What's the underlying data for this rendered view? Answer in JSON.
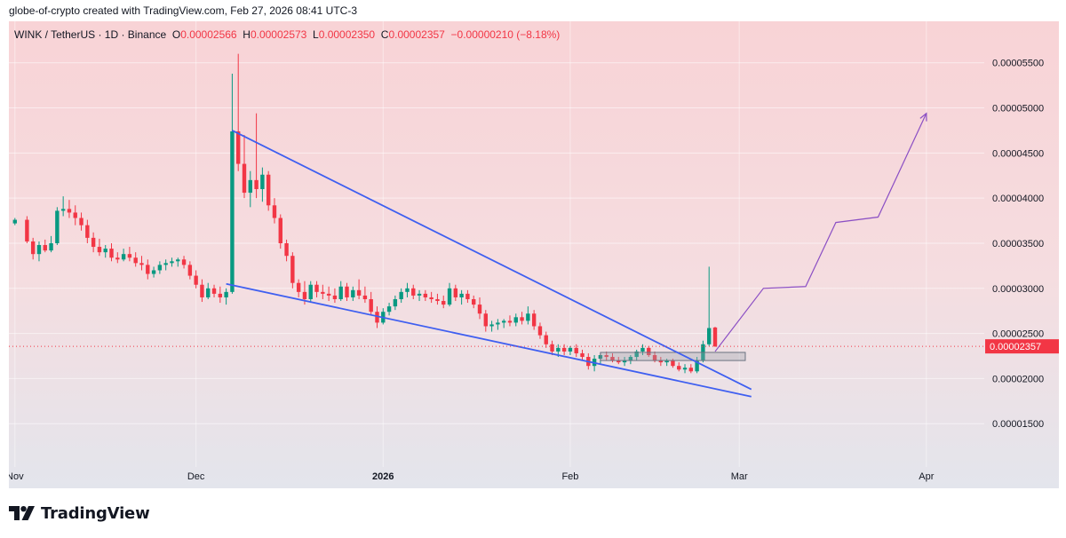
{
  "header": {
    "credit": "globe-of-crypto created with TradingView.com, Feb 27, 2026 08:41 UTC-3"
  },
  "legend": {
    "symbol": "WINK / TetherUS · 1D · Binance",
    "o_label": "O",
    "o_value": "0.00002566",
    "h_label": "H",
    "h_value": "0.00002573",
    "l_label": "L",
    "l_value": "0.00002350",
    "c_label": "C",
    "c_value": "0.00002357",
    "change": "−0.00000210 (−8.18%)"
  },
  "branding": {
    "name": "TradingView"
  },
  "colors": {
    "bull": "#089981",
    "bear": "#f23645",
    "trendline": "#3f5ff0",
    "projection": "#8b4fc4",
    "last_price_bg": "#f23645"
  },
  "chart_data": {
    "type": "candlestick",
    "x_ticks": [
      "Nov",
      "Dec",
      "2026",
      "Feb",
      "Mar",
      "Apr"
    ],
    "y_ticks": [
      "0.00001500",
      "0.00002000",
      "0.00002500",
      "0.00003000",
      "0.00003500",
      "0.00004000",
      "0.00004500",
      "0.00005000",
      "0.00005500"
    ],
    "ylim": [
      1.02e-05,
      5.96e-05
    ],
    "last_price": "0.00002357",
    "candles": [
      {
        "d": "2025-11-01",
        "o": 3.72,
        "h": 3.78,
        "l": 3.7,
        "c": 3.76
      },
      {
        "d": "2025-11-03",
        "o": 3.76,
        "h": 3.8,
        "l": 3.5,
        "c": 3.52
      },
      {
        "d": "2025-11-04",
        "o": 3.52,
        "h": 3.56,
        "l": 3.32,
        "c": 3.38
      },
      {
        "d": "2025-11-05",
        "o": 3.38,
        "h": 3.52,
        "l": 3.3,
        "c": 3.48
      },
      {
        "d": "2025-11-06",
        "o": 3.48,
        "h": 3.54,
        "l": 3.4,
        "c": 3.42
      },
      {
        "d": "2025-11-07",
        "o": 3.42,
        "h": 3.58,
        "l": 3.4,
        "c": 3.5
      },
      {
        "d": "2025-11-08",
        "o": 3.5,
        "h": 3.9,
        "l": 3.48,
        "c": 3.86
      },
      {
        "d": "2025-11-09",
        "o": 3.86,
        "h": 4.02,
        "l": 3.8,
        "c": 3.88
      },
      {
        "d": "2025-11-10",
        "o": 3.88,
        "h": 3.98,
        "l": 3.78,
        "c": 3.84
      },
      {
        "d": "2025-11-11",
        "o": 3.84,
        "h": 3.92,
        "l": 3.7,
        "c": 3.78
      },
      {
        "d": "2025-11-12",
        "o": 3.78,
        "h": 3.84,
        "l": 3.64,
        "c": 3.7
      },
      {
        "d": "2025-11-13",
        "o": 3.7,
        "h": 3.76,
        "l": 3.5,
        "c": 3.56
      },
      {
        "d": "2025-11-14",
        "o": 3.56,
        "h": 3.62,
        "l": 3.4,
        "c": 3.46
      },
      {
        "d": "2025-11-15",
        "o": 3.46,
        "h": 3.55,
        "l": 3.36,
        "c": 3.4
      },
      {
        "d": "2025-11-16",
        "o": 3.4,
        "h": 3.48,
        "l": 3.34,
        "c": 3.44
      },
      {
        "d": "2025-11-17",
        "o": 3.44,
        "h": 3.5,
        "l": 3.3,
        "c": 3.34
      },
      {
        "d": "2025-11-18",
        "o": 3.34,
        "h": 3.4,
        "l": 3.28,
        "c": 3.32
      },
      {
        "d": "2025-11-19",
        "o": 3.32,
        "h": 3.44,
        "l": 3.3,
        "c": 3.38
      },
      {
        "d": "2025-11-20",
        "o": 3.38,
        "h": 3.46,
        "l": 3.3,
        "c": 3.34
      },
      {
        "d": "2025-11-21",
        "o": 3.34,
        "h": 3.4,
        "l": 3.24,
        "c": 3.28
      },
      {
        "d": "2025-11-22",
        "o": 3.28,
        "h": 3.36,
        "l": 3.2,
        "c": 3.26
      },
      {
        "d": "2025-11-23",
        "o": 3.26,
        "h": 3.32,
        "l": 3.1,
        "c": 3.16
      },
      {
        "d": "2025-11-24",
        "o": 3.16,
        "h": 3.24,
        "l": 3.12,
        "c": 3.2
      },
      {
        "d": "2025-11-25",
        "o": 3.2,
        "h": 3.3,
        "l": 3.16,
        "c": 3.26
      },
      {
        "d": "2025-11-26",
        "o": 3.26,
        "h": 3.32,
        "l": 3.2,
        "c": 3.28
      },
      {
        "d": "2025-11-27",
        "o": 3.28,
        "h": 3.34,
        "l": 3.24,
        "c": 3.3
      },
      {
        "d": "2025-11-28",
        "o": 3.3,
        "h": 3.34,
        "l": 3.24,
        "c": 3.32
      },
      {
        "d": "2025-11-29",
        "o": 3.32,
        "h": 3.36,
        "l": 3.22,
        "c": 3.26
      },
      {
        "d": "2025-11-30",
        "o": 3.26,
        "h": 3.3,
        "l": 3.1,
        "c": 3.14
      },
      {
        "d": "2025-12-01",
        "o": 3.14,
        "h": 3.2,
        "l": 3.0,
        "c": 3.04
      },
      {
        "d": "2025-12-02",
        "o": 3.04,
        "h": 3.1,
        "l": 2.85,
        "c": 2.9
      },
      {
        "d": "2025-12-03",
        "o": 2.9,
        "h": 3.06,
        "l": 2.88,
        "c": 3.0
      },
      {
        "d": "2025-12-04",
        "o": 3.0,
        "h": 3.04,
        "l": 2.9,
        "c": 2.94
      },
      {
        "d": "2025-12-05",
        "o": 2.94,
        "h": 3.02,
        "l": 2.84,
        "c": 2.9
      },
      {
        "d": "2025-12-06",
        "o": 2.9,
        "h": 3.0,
        "l": 2.82,
        "c": 2.96
      },
      {
        "d": "2025-12-07",
        "o": 2.96,
        "h": 5.38,
        "l": 2.94,
        "c": 4.74
      },
      {
        "d": "2025-12-08",
        "o": 4.74,
        "h": 5.6,
        "l": 4.3,
        "c": 4.38
      },
      {
        "d": "2025-12-09",
        "o": 4.38,
        "h": 4.7,
        "l": 4.0,
        "c": 4.06
      },
      {
        "d": "2025-12-10",
        "o": 4.06,
        "h": 4.3,
        "l": 3.9,
        "c": 4.2
      },
      {
        "d": "2025-12-11",
        "o": 4.2,
        "h": 4.94,
        "l": 4.0,
        "c": 4.1
      },
      {
        "d": "2025-12-12",
        "o": 4.1,
        "h": 4.34,
        "l": 3.96,
        "c": 4.26
      },
      {
        "d": "2025-12-13",
        "o": 4.26,
        "h": 4.3,
        "l": 3.86,
        "c": 3.92
      },
      {
        "d": "2025-12-14",
        "o": 3.92,
        "h": 4.0,
        "l": 3.72,
        "c": 3.78
      },
      {
        "d": "2025-12-15",
        "o": 3.78,
        "h": 3.82,
        "l": 3.44,
        "c": 3.5
      },
      {
        "d": "2025-12-16",
        "o": 3.5,
        "h": 3.54,
        "l": 3.3,
        "c": 3.36
      },
      {
        "d": "2025-12-17",
        "o": 3.36,
        "h": 3.4,
        "l": 3.0,
        "c": 3.06
      },
      {
        "d": "2025-12-18",
        "o": 3.06,
        "h": 3.1,
        "l": 2.9,
        "c": 2.96
      },
      {
        "d": "2025-12-19",
        "o": 2.96,
        "h": 3.08,
        "l": 2.82,
        "c": 2.88
      },
      {
        "d": "2025-12-20",
        "o": 2.88,
        "h": 3.08,
        "l": 2.84,
        "c": 3.04
      },
      {
        "d": "2025-12-21",
        "o": 3.04,
        "h": 3.08,
        "l": 2.9,
        "c": 2.96
      },
      {
        "d": "2025-12-22",
        "o": 2.96,
        "h": 3.04,
        "l": 2.88,
        "c": 2.94
      },
      {
        "d": "2025-12-23",
        "o": 2.94,
        "h": 3.02,
        "l": 2.86,
        "c": 2.92
      },
      {
        "d": "2025-12-24",
        "o": 2.92,
        "h": 3.0,
        "l": 2.84,
        "c": 2.88
      },
      {
        "d": "2025-12-25",
        "o": 2.88,
        "h": 3.08,
        "l": 2.86,
        "c": 3.02
      },
      {
        "d": "2025-12-26",
        "o": 3.02,
        "h": 3.06,
        "l": 2.86,
        "c": 2.9
      },
      {
        "d": "2025-12-27",
        "o": 2.9,
        "h": 3.02,
        "l": 2.86,
        "c": 2.98
      },
      {
        "d": "2025-12-28",
        "o": 2.98,
        "h": 3.1,
        "l": 2.88,
        "c": 2.92
      },
      {
        "d": "2025-12-29",
        "o": 2.92,
        "h": 3.02,
        "l": 2.84,
        "c": 2.88
      },
      {
        "d": "2025-12-30",
        "o": 2.88,
        "h": 2.96,
        "l": 2.7,
        "c": 2.74
      },
      {
        "d": "2025-12-31",
        "o": 2.74,
        "h": 2.8,
        "l": 2.56,
        "c": 2.62
      },
      {
        "d": "2026-01-01",
        "o": 2.62,
        "h": 2.78,
        "l": 2.6,
        "c": 2.74
      },
      {
        "d": "2026-01-02",
        "o": 2.74,
        "h": 2.84,
        "l": 2.7,
        "c": 2.8
      },
      {
        "d": "2026-01-03",
        "o": 2.8,
        "h": 2.92,
        "l": 2.76,
        "c": 2.88
      },
      {
        "d": "2026-01-04",
        "o": 2.88,
        "h": 3.0,
        "l": 2.84,
        "c": 2.96
      },
      {
        "d": "2026-01-05",
        "o": 2.96,
        "h": 3.06,
        "l": 2.9,
        "c": 3.0
      },
      {
        "d": "2026-01-06",
        "o": 3.0,
        "h": 3.04,
        "l": 2.88,
        "c": 2.92
      },
      {
        "d": "2026-01-07",
        "o": 2.92,
        "h": 2.98,
        "l": 2.86,
        "c": 2.94
      },
      {
        "d": "2026-01-08",
        "o": 2.94,
        "h": 2.98,
        "l": 2.86,
        "c": 2.9
      },
      {
        "d": "2026-01-09",
        "o": 2.9,
        "h": 2.96,
        "l": 2.84,
        "c": 2.88
      },
      {
        "d": "2026-01-10",
        "o": 2.88,
        "h": 2.94,
        "l": 2.82,
        "c": 2.86
      },
      {
        "d": "2026-01-11",
        "o": 2.86,
        "h": 2.92,
        "l": 2.78,
        "c": 2.82
      },
      {
        "d": "2026-01-12",
        "o": 2.82,
        "h": 3.06,
        "l": 2.8,
        "c": 3.0
      },
      {
        "d": "2026-01-13",
        "o": 3.0,
        "h": 3.04,
        "l": 2.86,
        "c": 2.9
      },
      {
        "d": "2026-01-14",
        "o": 2.9,
        "h": 2.98,
        "l": 2.82,
        "c": 2.94
      },
      {
        "d": "2026-01-15",
        "o": 2.94,
        "h": 2.98,
        "l": 2.84,
        "c": 2.88
      },
      {
        "d": "2026-01-16",
        "o": 2.88,
        "h": 2.92,
        "l": 2.78,
        "c": 2.82
      },
      {
        "d": "2026-01-17",
        "o": 2.82,
        "h": 2.9,
        "l": 2.66,
        "c": 2.72
      },
      {
        "d": "2026-01-18",
        "o": 2.72,
        "h": 2.76,
        "l": 2.52,
        "c": 2.58
      },
      {
        "d": "2026-01-19",
        "o": 2.58,
        "h": 2.64,
        "l": 2.52,
        "c": 2.6
      },
      {
        "d": "2026-01-20",
        "o": 2.6,
        "h": 2.66,
        "l": 2.54,
        "c": 2.62
      },
      {
        "d": "2026-01-21",
        "o": 2.62,
        "h": 2.66,
        "l": 2.56,
        "c": 2.64
      },
      {
        "d": "2026-01-22",
        "o": 2.64,
        "h": 2.7,
        "l": 2.58,
        "c": 2.62
      },
      {
        "d": "2026-01-23",
        "o": 2.62,
        "h": 2.72,
        "l": 2.58,
        "c": 2.68
      },
      {
        "d": "2026-01-24",
        "o": 2.68,
        "h": 2.74,
        "l": 2.6,
        "c": 2.64
      },
      {
        "d": "2026-01-25",
        "o": 2.64,
        "h": 2.8,
        "l": 2.6,
        "c": 2.72
      },
      {
        "d": "2026-01-26",
        "o": 2.72,
        "h": 2.76,
        "l": 2.54,
        "c": 2.58
      },
      {
        "d": "2026-01-27",
        "o": 2.58,
        "h": 2.62,
        "l": 2.44,
        "c": 2.48
      },
      {
        "d": "2026-01-28",
        "o": 2.48,
        "h": 2.52,
        "l": 2.34,
        "c": 2.38
      },
      {
        "d": "2026-01-29",
        "o": 2.38,
        "h": 2.42,
        "l": 2.26,
        "c": 2.3
      },
      {
        "d": "2026-01-30",
        "o": 2.3,
        "h": 2.38,
        "l": 2.24,
        "c": 2.34
      },
      {
        "d": "2026-01-31",
        "o": 2.34,
        "h": 2.38,
        "l": 2.26,
        "c": 2.3
      },
      {
        "d": "2026-02-01",
        "o": 2.3,
        "h": 2.36,
        "l": 2.26,
        "c": 2.34
      },
      {
        "d": "2026-02-02",
        "o": 2.34,
        "h": 2.38,
        "l": 2.24,
        "c": 2.28
      },
      {
        "d": "2026-02-03",
        "o": 2.28,
        "h": 2.32,
        "l": 2.2,
        "c": 2.24
      },
      {
        "d": "2026-02-04",
        "o": 2.24,
        "h": 2.28,
        "l": 2.1,
        "c": 2.14
      },
      {
        "d": "2026-02-05",
        "o": 2.14,
        "h": 2.26,
        "l": 2.08,
        "c": 2.22
      },
      {
        "d": "2026-02-06",
        "o": 2.22,
        "h": 2.28,
        "l": 2.16,
        "c": 2.26
      },
      {
        "d": "2026-02-07",
        "o": 2.26,
        "h": 2.3,
        "l": 2.2,
        "c": 2.24
      },
      {
        "d": "2026-02-08",
        "o": 2.24,
        "h": 2.28,
        "l": 2.18,
        "c": 2.2
      },
      {
        "d": "2026-02-09",
        "o": 2.2,
        "h": 2.24,
        "l": 2.16,
        "c": 2.18
      },
      {
        "d": "2026-02-10",
        "o": 2.18,
        "h": 2.24,
        "l": 2.14,
        "c": 2.2
      },
      {
        "d": "2026-02-11",
        "o": 2.2,
        "h": 2.26,
        "l": 2.16,
        "c": 2.24
      },
      {
        "d": "2026-02-12",
        "o": 2.24,
        "h": 2.32,
        "l": 2.2,
        "c": 2.3
      },
      {
        "d": "2026-02-13",
        "o": 2.3,
        "h": 2.38,
        "l": 2.26,
        "c": 2.34
      },
      {
        "d": "2026-02-14",
        "o": 2.34,
        "h": 2.36,
        "l": 2.24,
        "c": 2.26
      },
      {
        "d": "2026-02-15",
        "o": 2.26,
        "h": 2.3,
        "l": 2.18,
        "c": 2.2
      },
      {
        "d": "2026-02-16",
        "o": 2.2,
        "h": 2.24,
        "l": 2.14,
        "c": 2.18
      },
      {
        "d": "2026-02-17",
        "o": 2.18,
        "h": 2.22,
        "l": 2.14,
        "c": 2.2
      },
      {
        "d": "2026-02-18",
        "o": 2.2,
        "h": 2.22,
        "l": 2.12,
        "c": 2.14
      },
      {
        "d": "2026-02-19",
        "o": 2.14,
        "h": 2.18,
        "l": 2.08,
        "c": 2.1
      },
      {
        "d": "2026-02-20",
        "o": 2.1,
        "h": 2.16,
        "l": 2.06,
        "c": 2.12
      },
      {
        "d": "2026-02-21",
        "o": 2.12,
        "h": 2.16,
        "l": 2.06,
        "c": 2.08
      },
      {
        "d": "2026-02-22",
        "o": 2.08,
        "h": 2.24,
        "l": 2.06,
        "c": 2.2
      },
      {
        "d": "2026-02-23",
        "o": 2.2,
        "h": 2.42,
        "l": 2.18,
        "c": 2.38
      },
      {
        "d": "2026-02-24",
        "o": 2.38,
        "h": 3.24,
        "l": 2.36,
        "c": 2.56
      },
      {
        "d": "2026-02-25",
        "o": 2.566,
        "h": 2.573,
        "l": 2.35,
        "c": 2.357
      }
    ],
    "candle_scale": 1e-05,
    "trendlines": [
      {
        "x1": "2025-12-07",
        "y1": 4.75e-05,
        "x2": "2026-03-03",
        "y2": 1.88e-05
      },
      {
        "x1": "2025-12-06",
        "y1": 3.05e-05,
        "x2": "2026-03-03",
        "y2": 1.8e-05
      }
    ],
    "projection": [
      {
        "x": "2026-02-25",
        "y": 2.3e-05
      },
      {
        "x": "2026-03-05",
        "y": 3e-05
      },
      {
        "x": "2026-03-12",
        "y": 3.02e-05
      },
      {
        "x": "2026-03-17",
        "y": 3.73e-05
      },
      {
        "x": "2026-03-24",
        "y": 3.79e-05
      },
      {
        "x": "2026-04-01",
        "y": 4.94e-05
      }
    ],
    "box": {
      "x1": "2026-02-06",
      "x2": "2026-03-02",
      "y1": 2.2e-05,
      "y2": 2.29e-05
    }
  }
}
